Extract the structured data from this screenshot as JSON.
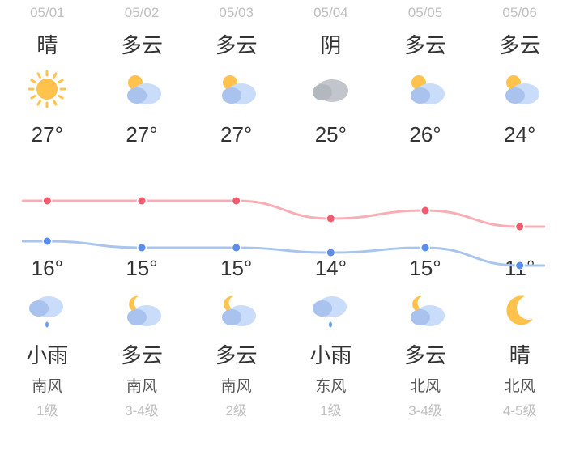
{
  "colors": {
    "background": "#ffffff",
    "date_text": "#bfbfbf",
    "main_text": "#333333",
    "wind_text": "#555555",
    "level_text": "#bfbfbf",
    "high_line": "#f9aeb5",
    "high_dot": "#f15a6e",
    "low_line": "#a9c5ee",
    "low_dot": "#5a8ee8",
    "sun_fill": "#ffc34d",
    "cloud_light": "#c9dcf9",
    "cloud_dark": "#a9c3ee",
    "cloud_gray": "#c2c6cc",
    "moon_fill": "#ffc34d"
  },
  "chart": {
    "high_y": [
      28,
      28,
      28,
      50,
      40,
      60
    ],
    "low_y": [
      78,
      86,
      86,
      92,
      86,
      108
    ],
    "dot_radius": 4.5,
    "line_width": 3
  },
  "days": [
    {
      "date": "05/01",
      "cond_day": "晴",
      "icon_day": "sunny",
      "high": "27°",
      "low": "16°",
      "icon_night": "light-rain",
      "cond_night": "小雨",
      "wind_dir": "南风",
      "wind_level": "1级"
    },
    {
      "date": "05/02",
      "cond_day": "多云",
      "icon_day": "partly-cloudy-day",
      "high": "27°",
      "low": "15°",
      "icon_night": "partly-cloudy-night",
      "cond_night": "多云",
      "wind_dir": "南风",
      "wind_level": "3-4级"
    },
    {
      "date": "05/03",
      "cond_day": "多云",
      "icon_day": "partly-cloudy-day",
      "high": "27°",
      "low": "15°",
      "icon_night": "partly-cloudy-night",
      "cond_night": "多云",
      "wind_dir": "南风",
      "wind_level": "2级"
    },
    {
      "date": "05/04",
      "cond_day": "阴",
      "icon_day": "overcast",
      "high": "25°",
      "low": "14°",
      "icon_night": "light-rain",
      "cond_night": "小雨",
      "wind_dir": "东风",
      "wind_level": "1级"
    },
    {
      "date": "05/05",
      "cond_day": "多云",
      "icon_day": "partly-cloudy-day",
      "high": "26°",
      "low": "15°",
      "icon_night": "partly-cloudy-night",
      "cond_night": "多云",
      "wind_dir": "北风",
      "wind_level": "3-4级"
    },
    {
      "date": "05/06",
      "cond_day": "多云",
      "icon_day": "partly-cloudy-day",
      "high": "24°",
      "low": "11°",
      "icon_night": "clear-night",
      "cond_night": "晴",
      "wind_dir": "北风",
      "wind_level": "4-5级"
    }
  ]
}
